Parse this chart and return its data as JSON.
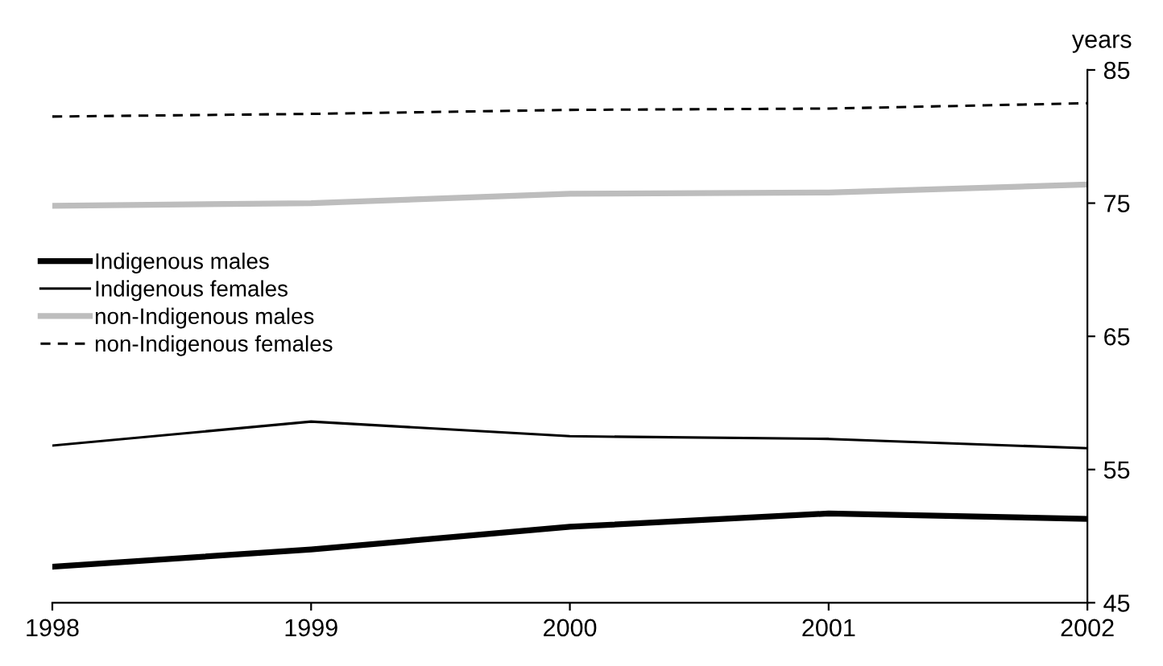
{
  "chart_data": {
    "type": "line",
    "ylabel": "years",
    "x": [
      1998,
      1999,
      2000,
      2001,
      2002
    ],
    "xlim": [
      1998,
      2002
    ],
    "xticks": [
      1998,
      1999,
      2000,
      2001,
      2002
    ],
    "ylim": [
      45,
      85
    ],
    "yticks": [
      45,
      55,
      65,
      75,
      85
    ],
    "grid": false,
    "legend": "left",
    "marker": "none",
    "series": [
      {
        "name": "Indigenous males",
        "color": "#000000",
        "line_style": "solid",
        "values": [
          47.7,
          49.0,
          50.7,
          51.7,
          51.3
        ]
      },
      {
        "name": "Indigenous females",
        "color": "#000000",
        "line_style": "solid",
        "values": [
          56.8,
          58.6,
          57.5,
          57.3,
          56.6
        ]
      },
      {
        "name": "non-Indigenous males",
        "color": "#bdbdbd",
        "line_style": "solid",
        "values": [
          74.8,
          75.0,
          75.7,
          75.8,
          76.4
        ]
      },
      {
        "name": "non-Indigenous females",
        "color": "#000000",
        "line_style": "dashed",
        "values": [
          81.5,
          81.7,
          82.0,
          82.1,
          82.5
        ]
      }
    ]
  }
}
